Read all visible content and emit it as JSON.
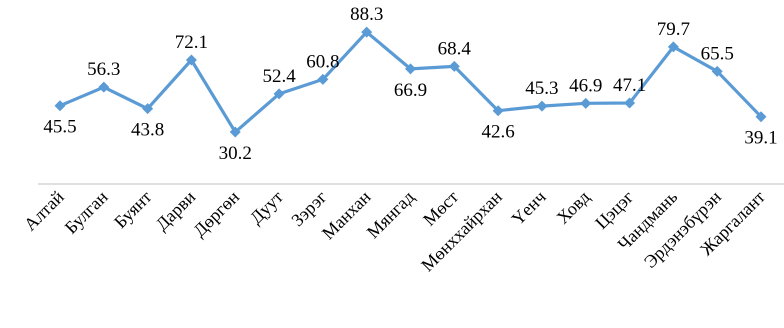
{
  "chart_data": {
    "type": "line",
    "title": "",
    "xlabel": "",
    "ylabel": "",
    "categories": [
      "Алтай",
      "Булган",
      "Буянт",
      "Дарви",
      "Дөргөн",
      "Дуут",
      "Зэрэг",
      "Манхан",
      "Мянгад",
      "Мөст",
      "Мөнххайрхан",
      "Үенч",
      "Ховд",
      "Цэцэг",
      "Чандмань",
      "Эрдэнэбүрэн",
      "Жаргалант"
    ],
    "series": [
      {
        "values": [
          45.5,
          56.3,
          43.8,
          72.1,
          30.2,
          52.4,
          60.8,
          88.3,
          66.9,
          68.4,
          42.6,
          45.3,
          46.9,
          47.1,
          79.7,
          65.5,
          39.1
        ],
        "value_labels": [
          "45.5",
          "56.3",
          "43.8",
          "72.1",
          "30.2",
          "52.4",
          "60.8",
          "88.3",
          "66.9",
          "68.4",
          "42.6",
          "45.3",
          "46.9",
          "47.1",
          "79.7",
          "65.5",
          "39.1"
        ],
        "color": "#5b9bd5",
        "marker": "diamond"
      }
    ],
    "ylim": [
      0,
      100
    ],
    "grid": false,
    "legend": "none",
    "axis_line_color": "#bfbfbf"
  }
}
